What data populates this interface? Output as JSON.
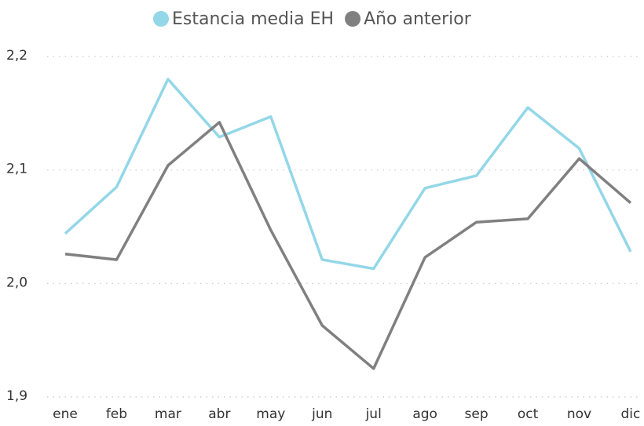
{
  "chart_data": {
    "type": "line",
    "categories": [
      "ene",
      "feb",
      "mar",
      "abr",
      "may",
      "jun",
      "jul",
      "ago",
      "sep",
      "oct",
      "nov",
      "dic"
    ],
    "series": [
      {
        "name": "Estancia media EH",
        "color": "#93d7e8",
        "values": [
          2.044,
          2.085,
          2.18,
          2.129,
          2.147,
          2.021,
          2.013,
          2.084,
          2.095,
          2.155,
          2.119,
          2.028
        ]
      },
      {
        "name": "Año anterior",
        "color": "#808080",
        "values": [
          2.026,
          2.021,
          2.104,
          2.142,
          2.047,
          1.963,
          1.925,
          2.023,
          2.054,
          2.057,
          2.11,
          2.071
        ]
      }
    ],
    "ylim": [
      1.9,
      2.2
    ],
    "yticks": [
      {
        "value": 1.9,
        "label": "1,9"
      },
      {
        "value": 2.0,
        "label": "2,0"
      },
      {
        "value": 2.1,
        "label": "2,1"
      },
      {
        "value": 2.2,
        "label": "2,2"
      }
    ],
    "grid": true,
    "legend": "top"
  }
}
